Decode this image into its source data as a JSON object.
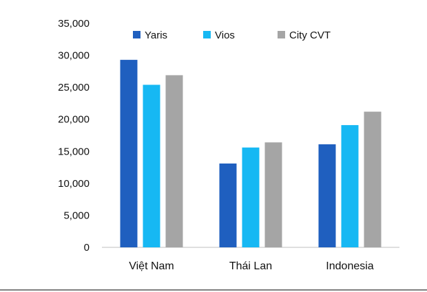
{
  "chart_data": {
    "type": "bar",
    "categories": [
      "Việt Nam",
      "Thái Lan",
      "Indonesia"
    ],
    "series": [
      {
        "name": "Yaris",
        "color": "#1F5FBF",
        "values": [
          29300,
          13100,
          16100
        ]
      },
      {
        "name": "Vios",
        "color": "#16B8F3",
        "values": [
          25400,
          15600,
          19100
        ]
      },
      {
        "name": "City CVT",
        "color": "#A5A5A5",
        "values": [
          26900,
          16400,
          21200
        ]
      }
    ],
    "y_ticks": [
      "0",
      "5,000",
      "10,000",
      "15,000",
      "20,000",
      "25,000",
      "30,000",
      "35,000"
    ],
    "ylim": [
      0,
      35000
    ],
    "title": "",
    "xlabel": "",
    "ylabel": "",
    "grid": false,
    "legend_position": "top"
  }
}
